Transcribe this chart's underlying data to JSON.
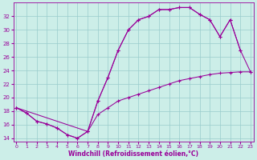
{
  "xlabel": "Windchill (Refroidissement éolien,°C)",
  "bg_color": "#cceee8",
  "grid_color": "#99cccc",
  "line_color": "#990099",
  "xlim": [
    -0.3,
    23.3
  ],
  "ylim": [
    13.5,
    34.0
  ],
  "yticks": [
    14,
    16,
    18,
    20,
    22,
    24,
    26,
    28,
    30,
    32
  ],
  "xticks": [
    0,
    1,
    2,
    3,
    4,
    5,
    6,
    7,
    8,
    9,
    10,
    11,
    12,
    13,
    14,
    15,
    16,
    17,
    18,
    19,
    20,
    21,
    22,
    23
  ],
  "curve_upper_x": [
    0,
    1,
    2,
    3,
    4,
    5,
    6,
    7,
    8,
    9,
    10,
    11,
    12,
    13,
    14,
    15,
    16,
    17,
    18,
    19,
    20,
    21,
    22
  ],
  "curve_upper_y": [
    18.5,
    17.7,
    16.5,
    16.1,
    15.5,
    14.5,
    14.0,
    15.0,
    19.5,
    23.0,
    27.0,
    30.0,
    31.5,
    32.0,
    33.0,
    33.0,
    33.3,
    33.3,
    32.3,
    31.5,
    29.0,
    31.5,
    27.0
  ],
  "curve_diag_x": [
    0,
    1,
    2,
    3,
    4,
    5,
    6,
    7,
    8,
    9,
    10,
    11,
    12,
    13,
    14,
    15,
    16,
    17,
    18,
    19,
    20,
    21,
    22,
    23
  ],
  "curve_diag_y": [
    18.5,
    17.7,
    16.5,
    16.1,
    15.5,
    14.5,
    14.0,
    15.0,
    17.5,
    18.5,
    19.5,
    20.0,
    20.5,
    21.0,
    21.5,
    22.0,
    22.5,
    22.8,
    23.1,
    23.4,
    23.6,
    23.7,
    23.8,
    23.8
  ],
  "curve_mid_x": [
    0,
    7,
    8,
    9,
    10,
    11,
    12,
    13,
    14,
    15,
    16,
    17,
    18,
    19,
    20,
    21,
    22,
    23
  ],
  "curve_mid_y": [
    18.5,
    15.0,
    19.5,
    23.0,
    27.0,
    30.0,
    31.5,
    32.0,
    33.0,
    33.0,
    33.3,
    33.3,
    32.3,
    31.5,
    29.0,
    31.5,
    27.0,
    23.8
  ]
}
